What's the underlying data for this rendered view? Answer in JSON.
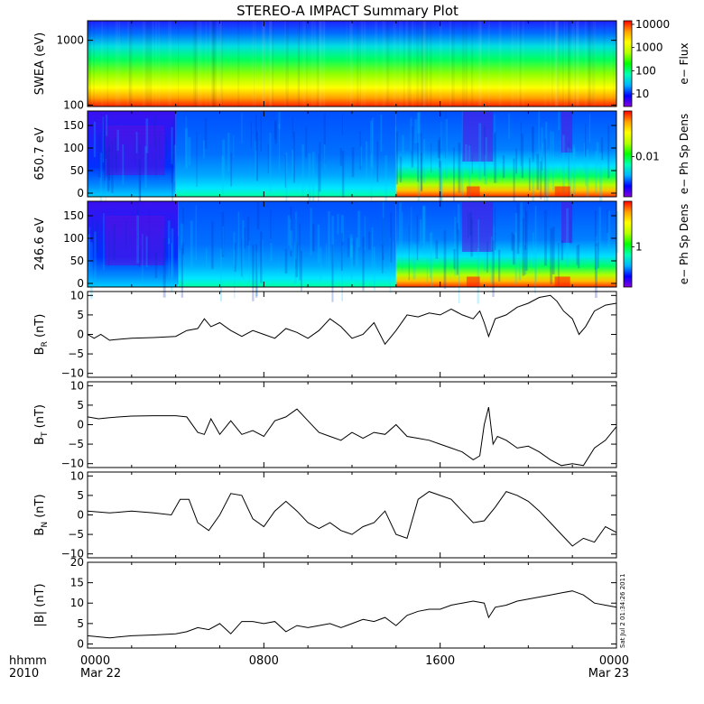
{
  "title": "STEREO-A IMPACT Summary Plot",
  "stamp": "Sat Jul  2 01:34:26 2011",
  "time_axis": {
    "row1_label": "hhmm",
    "row2_label": "2010",
    "ticks": [
      {
        "time": "0000",
        "date": "Mar 22",
        "hour": 0
      },
      {
        "time": "0800",
        "date": "",
        "hour": 8
      },
      {
        "time": "1600",
        "date": "",
        "hour": 16
      },
      {
        "time": "0000",
        "date": "Mar 23",
        "hour": 24
      }
    ]
  },
  "colorbar_colors": [
    "#8a00d8",
    "#0000ff",
    "#00b4ff",
    "#00ffb4",
    "#00ff00",
    "#b4ff00",
    "#ffff00",
    "#ffa000",
    "#ff0000"
  ],
  "chart_data": [
    {
      "type": "heatmap",
      "id": "swea",
      "ylabel": "SWEA (eV)",
      "yscale": "log",
      "ylim": [
        95,
        2000
      ],
      "yticks": [
        {
          "value": 100,
          "label": "100"
        },
        {
          "value": 1000,
          "label": "1000"
        }
      ],
      "colorbar_label": "e− Flux",
      "colorbar_ticks": [
        "10",
        "100",
        "1000",
        "10000"
      ]
    },
    {
      "type": "heatmap",
      "id": "pad650",
      "ylabel": "650.7 eV",
      "ylim": [
        -8,
        182
      ],
      "yticks": [
        {
          "value": 0,
          "label": "0"
        },
        {
          "value": 50,
          "label": "50"
        },
        {
          "value": 100,
          "label": "100"
        },
        {
          "value": 150,
          "label": "150"
        }
      ],
      "colorbar_label": "e− Ph Sp Dens",
      "colorbar_ticks": [
        "0.01"
      ]
    },
    {
      "type": "heatmap",
      "id": "pad246",
      "ylabel": "246.6 eV",
      "ylim": [
        -8,
        182
      ],
      "yticks": [
        {
          "value": 0,
          "label": "0"
        },
        {
          "value": 50,
          "label": "50"
        },
        {
          "value": 100,
          "label": "100"
        },
        {
          "value": 150,
          "label": "150"
        }
      ],
      "colorbar_label": "e− Ph Sp Dens",
      "colorbar_ticks": [
        "1"
      ]
    },
    {
      "type": "line",
      "id": "br",
      "ylabel_main": "B",
      "ylabel_sub": "R",
      "ylabel_unit": " (nT)",
      "ylim": [
        -11,
        11
      ],
      "yticks": [
        {
          "value": -10,
          "label": "−10"
        },
        {
          "value": -5,
          "label": "−5"
        },
        {
          "value": 0,
          "label": "0"
        },
        {
          "value": 5,
          "label": "5"
        },
        {
          "value": 10,
          "label": "10"
        }
      ],
      "x": [
        0,
        0.3,
        0.6,
        1,
        1.5,
        2,
        3,
        4,
        4.5,
        5,
        5.3,
        5.6,
        6,
        6.5,
        7,
        7.5,
        8,
        8.5,
        9,
        9.5,
        10,
        10.5,
        11,
        11.5,
        12,
        12.5,
        13,
        13.5,
        14,
        14.5,
        15,
        15.5,
        16,
        16.5,
        17,
        17.5,
        17.8,
        18,
        18.2,
        18.5,
        19,
        19.5,
        20,
        20.5,
        21,
        21.3,
        21.6,
        22,
        22.3,
        22.6,
        23,
        23.5,
        24
      ],
      "values": [
        0,
        -1,
        0,
        -1.5,
        -1.2,
        -1,
        -0.8,
        -0.5,
        1,
        1.5,
        4,
        2,
        3,
        1,
        -0.5,
        1,
        0,
        -1,
        1.5,
        0.5,
        -1,
        1,
        4,
        2,
        -1,
        0,
        3,
        -2.5,
        1,
        5,
        4.5,
        5.5,
        5,
        6.5,
        5,
        4,
        6,
        3,
        -0.5,
        4,
        5,
        7,
        8,
        9.5,
        10,
        8.5,
        6,
        4,
        0,
        2,
        6,
        7.5,
        8
      ]
    },
    {
      "type": "line",
      "id": "bt",
      "ylabel_main": "B",
      "ylabel_sub": "T",
      "ylabel_unit": " (nT)",
      "ylim": [
        -11,
        11
      ],
      "yticks": [
        {
          "value": -10,
          "label": "−10"
        },
        {
          "value": -5,
          "label": "−5"
        },
        {
          "value": 0,
          "label": "0"
        },
        {
          "value": 5,
          "label": "5"
        },
        {
          "value": 10,
          "label": "10"
        }
      ],
      "x": [
        0,
        0.5,
        1,
        2,
        3,
        4,
        4.5,
        5,
        5.3,
        5.6,
        6,
        6.5,
        7,
        7.5,
        8,
        8.5,
        9,
        9.5,
        10,
        10.5,
        11,
        11.5,
        12,
        12.5,
        13,
        13.5,
        14,
        14.5,
        15,
        15.5,
        16,
        16.5,
        17,
        17.5,
        17.8,
        18,
        18.2,
        18.4,
        18.6,
        19,
        19.5,
        20,
        20.5,
        21,
        21.5,
        22,
        22.5,
        23,
        23.5,
        24
      ],
      "values": [
        2,
        1.5,
        1.8,
        2.2,
        2.3,
        2.3,
        2,
        -2,
        -2.5,
        1.5,
        -2.5,
        1,
        -2.5,
        -1.5,
        -3,
        1,
        2,
        4,
        1,
        -2,
        -3,
        -4,
        -2,
        -3.5,
        -2,
        -2.5,
        0,
        -3,
        -3.5,
        -4,
        -5,
        -6,
        -7,
        -9,
        -8,
        0,
        4.5,
        -5,
        -3,
        -4,
        -6,
        -5.5,
        -7,
        -9,
        -10.5,
        -10,
        -10.5,
        -6,
        -4,
        -0.5
      ]
    },
    {
      "type": "line",
      "id": "bn",
      "ylabel_main": "B",
      "ylabel_sub": "N",
      "ylabel_unit": " (nT)",
      "ylim": [
        -11,
        11
      ],
      "yticks": [
        {
          "value": -10,
          "label": "−10"
        },
        {
          "value": -5,
          "label": "−5"
        },
        {
          "value": 0,
          "label": "0"
        },
        {
          "value": 5,
          "label": "5"
        },
        {
          "value": 10,
          "label": "10"
        }
      ],
      "x": [
        0,
        1,
        2,
        3,
        3.8,
        4.2,
        4.6,
        5,
        5.5,
        6,
        6.5,
        7,
        7.5,
        8,
        8.5,
        9,
        9.5,
        10,
        10.5,
        11,
        11.5,
        12,
        12.5,
        13,
        13.5,
        14,
        14.5,
        15,
        15.5,
        16,
        16.5,
        17,
        17.5,
        18,
        18.5,
        19,
        19.5,
        20,
        20.5,
        21,
        21.5,
        22,
        22.5,
        23,
        23.5,
        24
      ],
      "values": [
        1,
        0.5,
        1,
        0.5,
        0,
        4,
        4,
        -2,
        -4,
        0,
        5.5,
        5,
        -1,
        -3,
        1,
        3.5,
        1,
        -2,
        -3.5,
        -2,
        -4,
        -5,
        -3,
        -2,
        1,
        -5,
        -6,
        4,
        6,
        5,
        4,
        1,
        -2,
        -1.5,
        2,
        6,
        5,
        3.5,
        1,
        -2,
        -5,
        -8,
        -6,
        -7,
        -3,
        -4.5
      ]
    },
    {
      "type": "line",
      "id": "bmag",
      "ylabel_main": "|B| (nT)",
      "ylabel_sub": "",
      "ylabel_unit": "",
      "ylim": [
        -1,
        20
      ],
      "yticks": [
        {
          "value": 0,
          "label": "0"
        },
        {
          "value": 5,
          "label": "5"
        },
        {
          "value": 10,
          "label": "10"
        },
        {
          "value": 15,
          "label": "15"
        },
        {
          "value": 20,
          "label": "20"
        }
      ],
      "x": [
        0,
        1,
        2,
        3,
        4,
        4.5,
        5,
        5.5,
        6,
        6.5,
        7,
        7.5,
        8,
        8.5,
        9,
        9.5,
        10,
        10.5,
        11,
        11.5,
        12,
        12.5,
        13,
        13.5,
        14,
        14.5,
        15,
        15.5,
        16,
        16.5,
        17,
        17.5,
        18,
        18.2,
        18.5,
        19,
        19.5,
        20,
        20.5,
        21,
        21.5,
        22,
        22.5,
        23,
        23.5,
        24
      ],
      "values": [
        2,
        1.5,
        2,
        2.2,
        2.5,
        3,
        4,
        3.5,
        5,
        2.5,
        5.5,
        5.5,
        5,
        5.5,
        3,
        4.5,
        4,
        4.5,
        5,
        4,
        5,
        6,
        5.5,
        6.5,
        4.5,
        7,
        8,
        8.5,
        8.5,
        9.5,
        10,
        10.5,
        10,
        6.5,
        9,
        9.5,
        10.5,
        11,
        11.5,
        12,
        12.5,
        13,
        12,
        10,
        9.5,
        9
      ]
    }
  ]
}
